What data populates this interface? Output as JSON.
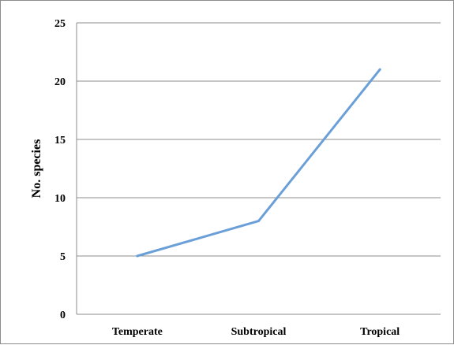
{
  "chart_data": {
    "type": "line",
    "title": "",
    "xlabel": "",
    "ylabel": "No. species",
    "categories": [
      "Temperate",
      "Subtropical",
      "Tropical"
    ],
    "series": [
      {
        "values": [
          5,
          8,
          21
        ],
        "color": "#6a9fd8"
      }
    ],
    "ylim": [
      0,
      25
    ],
    "yticks": [
      "0",
      "5",
      "10",
      "15",
      "20",
      "25"
    ],
    "grid": true,
    "gridColor": "#8c8c8c",
    "legend": "none"
  }
}
